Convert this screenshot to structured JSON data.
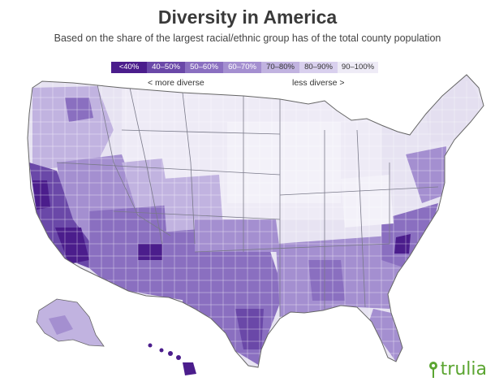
{
  "header": {
    "title": "Diversity in America",
    "subtitle": "Based on the share of the largest racial/ethnic group has of the total county population"
  },
  "legend": {
    "bins": [
      {
        "label": "<40%",
        "color": "#4b1d8c",
        "text_color": "#ffffff"
      },
      {
        "label": "40–50%",
        "color": "#6a48a8",
        "text_color": "#ffffff"
      },
      {
        "label": "50–60%",
        "color": "#8a6fc0",
        "text_color": "#ffffff"
      },
      {
        "label": "60–70%",
        "color": "#a48fd0",
        "text_color": "#ffffff"
      },
      {
        "label": "70–80%",
        "color": "#c1b3e0",
        "text_color": "#333333"
      },
      {
        "label": "80–90%",
        "color": "#d9d0ee",
        "text_color": "#333333"
      },
      {
        "label": "90–100%",
        "color": "#eeebf6",
        "text_color": "#333333"
      }
    ],
    "more_diverse": "< more diverse",
    "less_diverse": "less diverse >"
  },
  "brand": {
    "name": "trulia",
    "color": "#5ba531",
    "icon": "map-pin-icon"
  }
}
